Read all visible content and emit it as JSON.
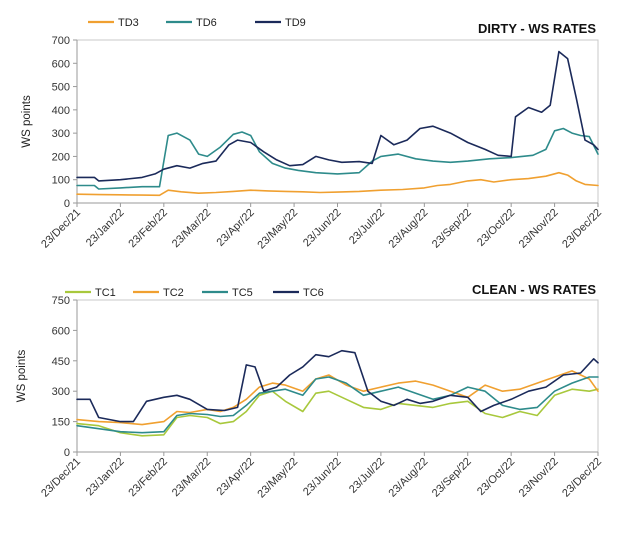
{
  "colors": {
    "TD3": "#f0a030",
    "TD6": "#2e8b8b",
    "TD9": "#1b2a5a",
    "TC1": "#a8c83c",
    "TC2": "#f0a030",
    "TC5": "#2e8b8b",
    "TC6": "#1b2a5a"
  },
  "chart_data": [
    {
      "type": "line",
      "title": "DIRTY - WS RATES",
      "xlabel": "",
      "ylabel": "WS points",
      "ylim": [
        0,
        700
      ],
      "yticks": [
        "0",
        "100",
        "200",
        "300",
        "400",
        "500",
        "600",
        "700"
      ],
      "x_ticklabels": [
        "23/Dec/21",
        "23/Jan/22",
        "23/Feb/22",
        "23/Mar/22",
        "23/Apr/22",
        "23/May/22",
        "23/Jun/22",
        "23/Jul/22",
        "23/Aug/22",
        "23/Sep/22",
        "23/Oct/22",
        "23/Nov/22",
        "23/Dec/22"
      ],
      "x_range": [
        0,
        12
      ],
      "grid": false,
      "legend": "top-left",
      "series": [
        {
          "name": "TD3",
          "color": "#f0a030",
          "points": [
            [
              0,
              38
            ],
            [
              0.5,
              36
            ],
            [
              1,
              35
            ],
            [
              1.5,
              34
            ],
            [
              1.9,
              33
            ],
            [
              2.1,
              55
            ],
            [
              2.4,
              48
            ],
            [
              2.8,
              42
            ],
            [
              3.2,
              45
            ],
            [
              3.6,
              50
            ],
            [
              4,
              55
            ],
            [
              4.4,
              52
            ],
            [
              4.8,
              50
            ],
            [
              5.2,
              48
            ],
            [
              5.6,
              45
            ],
            [
              6,
              47
            ],
            [
              6.5,
              50
            ],
            [
              7,
              55
            ],
            [
              7.5,
              58
            ],
            [
              8,
              65
            ],
            [
              8.3,
              75
            ],
            [
              8.6,
              80
            ],
            [
              9,
              95
            ],
            [
              9.3,
              100
            ],
            [
              9.6,
              90
            ],
            [
              10,
              100
            ],
            [
              10.4,
              105
            ],
            [
              10.8,
              115
            ],
            [
              11.1,
              130
            ],
            [
              11.3,
              120
            ],
            [
              11.5,
              95
            ],
            [
              11.7,
              80
            ],
            [
              12,
              75
            ]
          ]
        },
        {
          "name": "TD6",
          "color": "#2e8b8b",
          "points": [
            [
              0,
              75
            ],
            [
              0.4,
              75
            ],
            [
              0.5,
              60
            ],
            [
              1,
              65
            ],
            [
              1.5,
              70
            ],
            [
              1.9,
              70
            ],
            [
              2.1,
              290
            ],
            [
              2.3,
              300
            ],
            [
              2.6,
              270
            ],
            [
              2.8,
              210
            ],
            [
              3,
              200
            ],
            [
              3.3,
              240
            ],
            [
              3.6,
              295
            ],
            [
              3.8,
              305
            ],
            [
              4,
              290
            ],
            [
              4.2,
              220
            ],
            [
              4.5,
              170
            ],
            [
              4.8,
              150
            ],
            [
              5.1,
              140
            ],
            [
              5.5,
              130
            ],
            [
              6,
              125
            ],
            [
              6.5,
              130
            ],
            [
              6.8,
              180
            ],
            [
              7,
              200
            ],
            [
              7.4,
              210
            ],
            [
              7.8,
              190
            ],
            [
              8.2,
              180
            ],
            [
              8.6,
              175
            ],
            [
              9,
              180
            ],
            [
              9.5,
              190
            ],
            [
              10,
              195
            ],
            [
              10.5,
              205
            ],
            [
              10.8,
              230
            ],
            [
              11,
              310
            ],
            [
              11.2,
              320
            ],
            [
              11.4,
              300
            ],
            [
              11.6,
              290
            ],
            [
              11.8,
              285
            ],
            [
              12,
              210
            ]
          ]
        },
        {
          "name": "TD9",
          "color": "#1b2a5a",
          "points": [
            [
              0,
              110
            ],
            [
              0.4,
              110
            ],
            [
              0.5,
              95
            ],
            [
              1,
              100
            ],
            [
              1.5,
              110
            ],
            [
              1.8,
              125
            ],
            [
              2,
              145
            ],
            [
              2.3,
              160
            ],
            [
              2.6,
              150
            ],
            [
              2.9,
              170
            ],
            [
              3.2,
              180
            ],
            [
              3.5,
              250
            ],
            [
              3.7,
              270
            ],
            [
              4,
              260
            ],
            [
              4.3,
              220
            ],
            [
              4.6,
              185
            ],
            [
              4.9,
              160
            ],
            [
              5.2,
              165
            ],
            [
              5.5,
              200
            ],
            [
              5.8,
              185
            ],
            [
              6.1,
              175
            ],
            [
              6.5,
              178
            ],
            [
              6.8,
              170
            ],
            [
              7,
              290
            ],
            [
              7.3,
              250
            ],
            [
              7.6,
              270
            ],
            [
              7.9,
              320
            ],
            [
              8.2,
              330
            ],
            [
              8.6,
              300
            ],
            [
              9,
              260
            ],
            [
              9.4,
              230
            ],
            [
              9.7,
              205
            ],
            [
              10,
              200
            ],
            [
              10.1,
              370
            ],
            [
              10.4,
              410
            ],
            [
              10.7,
              390
            ],
            [
              10.9,
              420
            ],
            [
              11.1,
              650
            ],
            [
              11.3,
              620
            ],
            [
              11.5,
              450
            ],
            [
              11.7,
              270
            ],
            [
              11.9,
              250
            ],
            [
              12,
              230
            ]
          ]
        }
      ]
    },
    {
      "type": "line",
      "title": "CLEAN - WS RATES",
      "xlabel": "",
      "ylabel": "WS points",
      "ylim": [
        0,
        750
      ],
      "yticks": [
        "0",
        "150",
        "300",
        "450",
        "600",
        "750"
      ],
      "x_ticklabels": [
        "23/Dec/21",
        "23/Jan/22",
        "23/Feb/22",
        "23/Mar/22",
        "23/Apr/22",
        "23/May/22",
        "23/Jun/22",
        "23/Jul/22",
        "23/Aug/22",
        "23/Sep/22",
        "23/Oct/22",
        "23/Nov/22",
        "23/Dec/22"
      ],
      "x_range": [
        0,
        12
      ],
      "grid": false,
      "legend": "top-left",
      "series": [
        {
          "name": "TC1",
          "color": "#a8c83c",
          "points": [
            [
              0,
              140
            ],
            [
              0.5,
              130
            ],
            [
              1,
              95
            ],
            [
              1.5,
              80
            ],
            [
              2,
              85
            ],
            [
              2.3,
              170
            ],
            [
              2.6,
              180
            ],
            [
              3,
              170
            ],
            [
              3.3,
              140
            ],
            [
              3.6,
              150
            ],
            [
              3.9,
              200
            ],
            [
              4.2,
              280
            ],
            [
              4.5,
              300
            ],
            [
              4.8,
              250
            ],
            [
              5.2,
              200
            ],
            [
              5.5,
              290
            ],
            [
              5.8,
              300
            ],
            [
              6.2,
              260
            ],
            [
              6.6,
              220
            ],
            [
              7,
              210
            ],
            [
              7.4,
              240
            ],
            [
              7.8,
              230
            ],
            [
              8.2,
              220
            ],
            [
              8.6,
              240
            ],
            [
              9,
              250
            ],
            [
              9.4,
              190
            ],
            [
              9.8,
              170
            ],
            [
              10.2,
              200
            ],
            [
              10.6,
              180
            ],
            [
              11,
              280
            ],
            [
              11.4,
              310
            ],
            [
              11.8,
              300
            ],
            [
              12,
              310
            ]
          ]
        },
        {
          "name": "TC2",
          "color": "#f0a030",
          "points": [
            [
              0,
              160
            ],
            [
              0.5,
              150
            ],
            [
              1,
              145
            ],
            [
              1.5,
              135
            ],
            [
              2,
              150
            ],
            [
              2.3,
              200
            ],
            [
              2.6,
              195
            ],
            [
              3,
              210
            ],
            [
              3.3,
              200
            ],
            [
              3.6,
              220
            ],
            [
              3.9,
              260
            ],
            [
              4.2,
              320
            ],
            [
              4.5,
              340
            ],
            [
              4.8,
              330
            ],
            [
              5.2,
              300
            ],
            [
              5.5,
              360
            ],
            [
              5.8,
              380
            ],
            [
              6.2,
              330
            ],
            [
              6.6,
              300
            ],
            [
              7,
              320
            ],
            [
              7.4,
              340
            ],
            [
              7.8,
              350
            ],
            [
              8.2,
              330
            ],
            [
              8.6,
              300
            ],
            [
              9,
              270
            ],
            [
              9.4,
              330
            ],
            [
              9.8,
              300
            ],
            [
              10.2,
              310
            ],
            [
              10.6,
              340
            ],
            [
              11,
              370
            ],
            [
              11.4,
              400
            ],
            [
              11.8,
              360
            ],
            [
              12,
              300
            ]
          ]
        },
        {
          "name": "TC5",
          "color": "#2e8b8b",
          "points": [
            [
              0,
              130
            ],
            [
              0.5,
              115
            ],
            [
              1,
              100
            ],
            [
              1.5,
              95
            ],
            [
              2,
              100
            ],
            [
              2.3,
              180
            ],
            [
              2.6,
              190
            ],
            [
              3,
              185
            ],
            [
              3.3,
              175
            ],
            [
              3.6,
              180
            ],
            [
              3.9,
              230
            ],
            [
              4.2,
              290
            ],
            [
              4.5,
              300
            ],
            [
              4.8,
              310
            ],
            [
              5.2,
              280
            ],
            [
              5.5,
              360
            ],
            [
              5.8,
              370
            ],
            [
              6.2,
              340
            ],
            [
              6.6,
              280
            ],
            [
              7,
              300
            ],
            [
              7.4,
              320
            ],
            [
              7.8,
              290
            ],
            [
              8.2,
              260
            ],
            [
              8.6,
              280
            ],
            [
              9,
              320
            ],
            [
              9.4,
              300
            ],
            [
              9.8,
              230
            ],
            [
              10.2,
              210
            ],
            [
              10.6,
              220
            ],
            [
              11,
              300
            ],
            [
              11.4,
              340
            ],
            [
              11.8,
              370
            ],
            [
              12,
              370
            ]
          ]
        },
        {
          "name": "TC6",
          "color": "#1b2a5a",
          "points": [
            [
              0,
              260
            ],
            [
              0.3,
              260
            ],
            [
              0.5,
              170
            ],
            [
              1,
              150
            ],
            [
              1.3,
              150
            ],
            [
              1.6,
              250
            ],
            [
              2,
              270
            ],
            [
              2.3,
              280
            ],
            [
              2.6,
              260
            ],
            [
              3,
              210
            ],
            [
              3.4,
              205
            ],
            [
              3.7,
              220
            ],
            [
              3.9,
              430
            ],
            [
              4.1,
              420
            ],
            [
              4.3,
              300
            ],
            [
              4.6,
              320
            ],
            [
              4.9,
              380
            ],
            [
              5.2,
              420
            ],
            [
              5.5,
              480
            ],
            [
              5.8,
              470
            ],
            [
              6.1,
              500
            ],
            [
              6.4,
              490
            ],
            [
              6.7,
              300
            ],
            [
              7,
              250
            ],
            [
              7.3,
              230
            ],
            [
              7.6,
              260
            ],
            [
              7.9,
              240
            ],
            [
              8.2,
              250
            ],
            [
              8.6,
              280
            ],
            [
              9,
              270
            ],
            [
              9.3,
              200
            ],
            [
              9.6,
              230
            ],
            [
              10,
              260
            ],
            [
              10.4,
              300
            ],
            [
              10.8,
              320
            ],
            [
              11.2,
              380
            ],
            [
              11.6,
              390
            ],
            [
              11.9,
              460
            ],
            [
              12,
              440
            ]
          ]
        }
      ]
    }
  ]
}
